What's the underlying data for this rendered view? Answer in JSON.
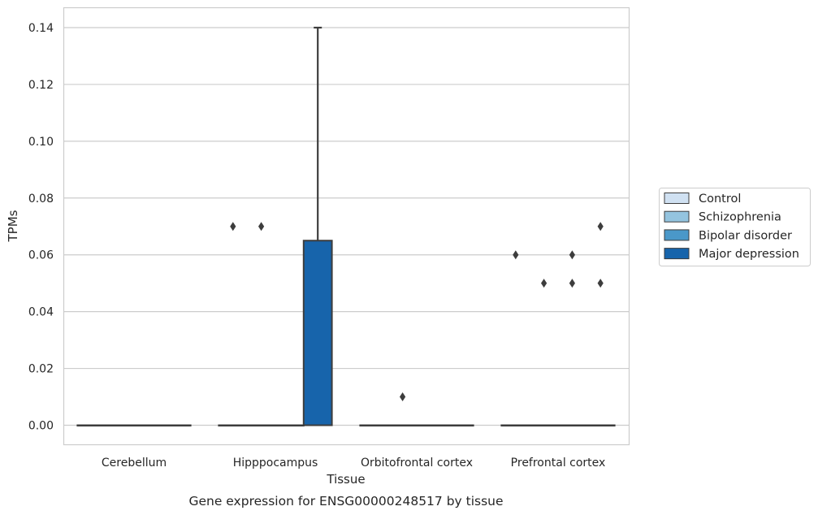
{
  "caption": "Gene expression for ENSG00000248517 by tissue",
  "chart_data": {
    "type": "box",
    "xlabel": "Tissue",
    "ylabel": "TPMs",
    "ylim": [
      -0.0068,
      0.147
    ],
    "yticks": [
      0.0,
      0.02,
      0.04,
      0.06,
      0.08,
      0.1,
      0.12,
      0.14
    ],
    "ytick_labels": [
      "0.00",
      "0.02",
      "0.04",
      "0.06",
      "0.08",
      "0.10",
      "0.12",
      "0.14"
    ],
    "grid": true,
    "legend_position": "right",
    "categories": [
      "Cerebellum",
      "Hipppocampus",
      "Orbitofrontal cortex",
      "Prefrontal cortex"
    ],
    "series": [
      {
        "name": "Control",
        "color": "#d0e1f2",
        "boxes": [
          {
            "category": "Cerebellum",
            "q1": 0,
            "median": 0,
            "q3": 0,
            "whisker_low": 0,
            "whisker_high": 0,
            "outliers": []
          },
          {
            "category": "Hipppocampus",
            "q1": 0,
            "median": 0,
            "q3": 0,
            "whisker_low": 0,
            "whisker_high": 0,
            "outliers": [
              0.07
            ]
          },
          {
            "category": "Orbitofrontal cortex",
            "q1": 0,
            "median": 0,
            "q3": 0,
            "whisker_low": 0,
            "whisker_high": 0,
            "outliers": []
          },
          {
            "category": "Prefrontal cortex",
            "q1": 0,
            "median": 0,
            "q3": 0,
            "whisker_low": 0,
            "whisker_high": 0,
            "outliers": [
              0.06
            ]
          }
        ]
      },
      {
        "name": "Schizophrenia",
        "color": "#94c4df",
        "boxes": [
          {
            "category": "Cerebellum",
            "q1": 0,
            "median": 0,
            "q3": 0,
            "whisker_low": 0,
            "whisker_high": 0,
            "outliers": []
          },
          {
            "category": "Hipppocampus",
            "q1": 0,
            "median": 0,
            "q3": 0,
            "whisker_low": 0,
            "whisker_high": 0,
            "outliers": [
              0.07
            ]
          },
          {
            "category": "Orbitofrontal cortex",
            "q1": 0,
            "median": 0,
            "q3": 0,
            "whisker_low": 0,
            "whisker_high": 0,
            "outliers": [
              0.01
            ]
          },
          {
            "category": "Prefrontal cortex",
            "q1": 0,
            "median": 0,
            "q3": 0,
            "whisker_low": 0,
            "whisker_high": 0,
            "outliers": [
              0.05
            ]
          }
        ]
      },
      {
        "name": "Bipolar disorder",
        "color": "#4a98c9",
        "boxes": [
          {
            "category": "Cerebellum",
            "q1": 0,
            "median": 0,
            "q3": 0,
            "whisker_low": 0,
            "whisker_high": 0,
            "outliers": []
          },
          {
            "category": "Hipppocampus",
            "q1": 0,
            "median": 0,
            "q3": 0,
            "whisker_low": 0,
            "whisker_high": 0,
            "outliers": []
          },
          {
            "category": "Orbitofrontal cortex",
            "q1": 0,
            "median": 0,
            "q3": 0,
            "whisker_low": 0,
            "whisker_high": 0,
            "outliers": []
          },
          {
            "category": "Prefrontal cortex",
            "q1": 0,
            "median": 0,
            "q3": 0,
            "whisker_low": 0,
            "whisker_high": 0,
            "outliers": [
              0.06,
              0.05
            ]
          }
        ]
      },
      {
        "name": "Major depression",
        "color": "#1764ab",
        "boxes": [
          {
            "category": "Cerebellum",
            "q1": 0,
            "median": 0,
            "q3": 0,
            "whisker_low": 0,
            "whisker_high": 0,
            "outliers": []
          },
          {
            "category": "Hipppocampus",
            "q1": 0,
            "median": 0,
            "q3": 0.065,
            "whisker_low": 0,
            "whisker_high": 0.14,
            "outliers": []
          },
          {
            "category": "Orbitofrontal cortex",
            "q1": 0,
            "median": 0,
            "q3": 0,
            "whisker_low": 0,
            "whisker_high": 0,
            "outliers": []
          },
          {
            "category": "Prefrontal cortex",
            "q1": 0,
            "median": 0,
            "q3": 0,
            "whisker_low": 0,
            "whisker_high": 0,
            "outliers": [
              0.07,
              0.05
            ]
          }
        ]
      }
    ]
  }
}
